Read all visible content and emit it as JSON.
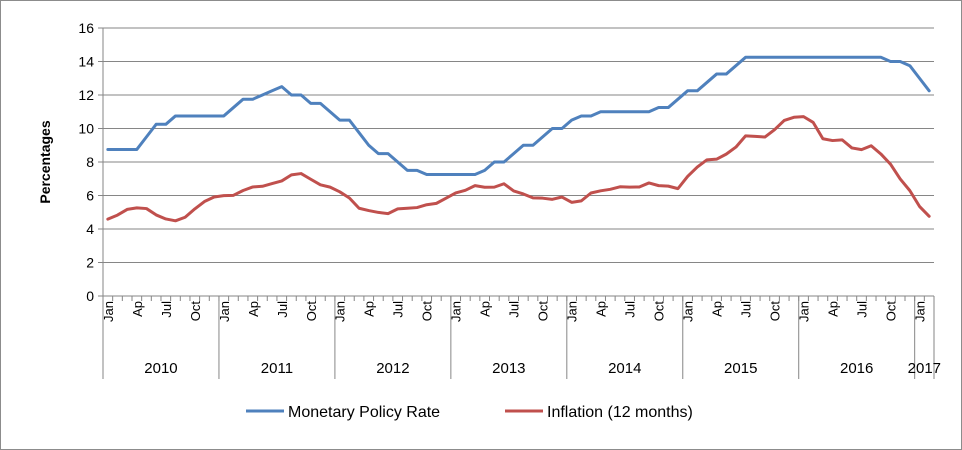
{
  "chart_data": {
    "type": "line",
    "title": "",
    "xlabel": "",
    "ylabel": "Percentages",
    "ylim": [
      0,
      16
    ],
    "yticks": [
      0,
      2,
      4,
      6,
      8,
      10,
      12,
      14,
      16
    ],
    "grid": true,
    "legend_position": "bottom",
    "month_tick_labels": [
      "Jan",
      "Ap",
      "Jul",
      "Oct"
    ],
    "years": [
      "2010",
      "2011",
      "2012",
      "2013",
      "2014",
      "2015",
      "2016",
      "2017"
    ],
    "x_start": "2010-01",
    "series": [
      {
        "name": "Monetary Policy  Rate",
        "color": "#4f81bd",
        "values": [
          8.75,
          8.75,
          8.75,
          8.75,
          9.5,
          10.25,
          10.25,
          10.75,
          10.75,
          10.75,
          10.75,
          10.75,
          10.75,
          11.25,
          11.75,
          11.75,
          12.0,
          12.25,
          12.5,
          12.0,
          12.0,
          11.5,
          11.5,
          11.0,
          10.5,
          10.5,
          9.75,
          9.0,
          8.5,
          8.5,
          8.0,
          7.5,
          7.5,
          7.25,
          7.25,
          7.25,
          7.25,
          7.25,
          7.25,
          7.5,
          8.0,
          8.0,
          8.5,
          9.0,
          9.0,
          9.5,
          10.0,
          10.0,
          10.5,
          10.75,
          10.75,
          11.0,
          11.0,
          11.0,
          11.0,
          11.0,
          11.0,
          11.25,
          11.25,
          11.75,
          12.25,
          12.25,
          12.75,
          13.25,
          13.25,
          13.75,
          14.25,
          14.25,
          14.25,
          14.25,
          14.25,
          14.25,
          14.25,
          14.25,
          14.25,
          14.25,
          14.25,
          14.25,
          14.25,
          14.25,
          14.25,
          14.0,
          14.0,
          13.75,
          13.0,
          12.25
        ]
      },
      {
        "name": "Inflation (12 months)",
        "color": "#c0504d",
        "values": [
          4.59,
          4.83,
          5.17,
          5.26,
          5.22,
          4.84,
          4.6,
          4.49,
          4.7,
          5.2,
          5.64,
          5.91,
          5.99,
          6.01,
          6.3,
          6.51,
          6.55,
          6.71,
          6.87,
          7.23,
          7.31,
          6.97,
          6.64,
          6.5,
          6.22,
          5.85,
          5.24,
          5.1,
          4.99,
          4.92,
          5.2,
          5.24,
          5.28,
          5.45,
          5.53,
          5.84,
          6.15,
          6.31,
          6.59,
          6.49,
          6.5,
          6.7,
          6.27,
          6.09,
          5.86,
          5.84,
          5.77,
          5.91,
          5.59,
          5.68,
          6.15,
          6.28,
          6.37,
          6.52,
          6.5,
          6.51,
          6.75,
          6.59,
          6.56,
          6.41,
          7.14,
          7.7,
          8.13,
          8.17,
          8.47,
          8.89,
          9.56,
          9.53,
          9.49,
          9.93,
          10.48,
          10.67,
          10.71,
          10.36,
          9.39,
          9.28,
          9.32,
          8.84,
          8.74,
          8.97,
          8.48,
          7.87,
          6.99,
          6.29,
          5.35,
          4.76
        ]
      }
    ]
  }
}
